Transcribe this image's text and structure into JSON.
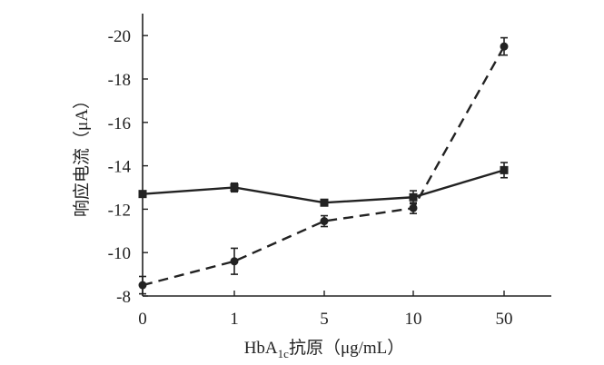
{
  "chart_data": {
    "type": "line",
    "categories": [
      "0",
      "1",
      "5",
      "10",
      "50"
    ],
    "xlabel": "HbA1c抗原（μg/mL）",
    "xlabel_parts": {
      "pre": "HbA",
      "sub": "1c",
      "post": "抗原（μg/mL）"
    },
    "ylabel": "响应电流（μA）",
    "ylim": [
      -8,
      -21
    ],
    "yticks": [
      -8,
      -10,
      -12,
      -14,
      -16,
      -18,
      -20
    ],
    "ytick_labels": [
      "-8",
      "-10",
      "-12",
      "-14",
      "-16",
      "-18",
      "-20"
    ],
    "y_inverted": true,
    "grid": false,
    "series": [
      {
        "style": "solid",
        "marker": "square",
        "color": "#222222",
        "values": [
          -12.7,
          -13.0,
          -12.3,
          -12.55,
          -13.8
        ],
        "errors": [
          0.1,
          0.2,
          0.1,
          0.3,
          0.35
        ]
      },
      {
        "style": "dashed",
        "marker": "circle",
        "color": "#222222",
        "values": [
          -8.5,
          -9.6,
          -11.45,
          -12.05,
          -19.5
        ],
        "errors": [
          0.4,
          0.6,
          0.25,
          0.25,
          0.4
        ]
      }
    ]
  }
}
